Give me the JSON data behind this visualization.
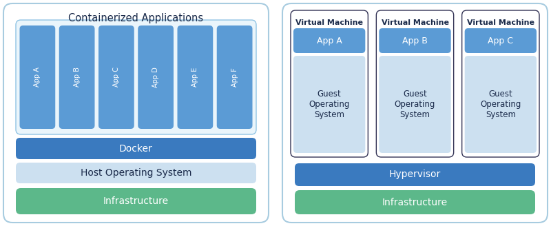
{
  "bg_color": "#ffffff",
  "outer_box_color": "#a8cce0",
  "outer_box_fill": "#ffffff",
  "blue_dark": "#3a7abf",
  "blue_mid": "#5b9bd5",
  "blue_light": "#cce0f0",
  "green": "#5cb88a",
  "white": "#ffffff",
  "text_dark": "#1a2a4a",
  "text_white": "#ffffff",
  "left_title": "Containerized Applications",
  "right_vm_label": "Virtual Machine",
  "docker_label": "Docker",
  "host_os_label": "Host Operating System",
  "infra_label": "Infrastructure",
  "hypervisor_label": "Hypervisor",
  "guest_os_label": "Guest\nOperating\nSystem",
  "apps_left": [
    "App A",
    "App B",
    "App C",
    "App D",
    "App E",
    "App F"
  ],
  "apps_right": [
    "App A",
    "App B",
    "App C"
  ],
  "fig_w": 8.0,
  "fig_h": 3.28
}
